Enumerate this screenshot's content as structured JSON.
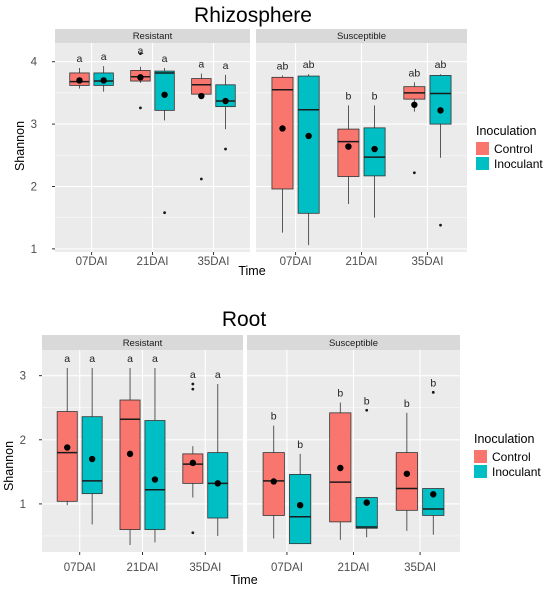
{
  "colors": {
    "control": "#F8766D",
    "inoculant": "#00BFC4",
    "panel_bg": "#EBEBEB",
    "strip_bg": "#D9D9D9",
    "grid": "#ffffff"
  },
  "legend": {
    "title": "Inoculation",
    "items": [
      "Control",
      "Inoculant"
    ]
  },
  "chart_data": [
    {
      "type": "box",
      "title": "Rhizosphere",
      "xlabel": "Time",
      "ylabel": "Shannon",
      "ylim": [
        0.95,
        4.3
      ],
      "yticks": [
        1,
        2,
        3,
        4
      ],
      "categories": [
        "07DAI",
        "21DAI",
        "35DAI"
      ],
      "facets": [
        {
          "label": "Resistant",
          "boxes": [
            {
              "time": "07DAI",
              "group": "Control",
              "min": 3.57,
              "q1": 3.62,
              "median": 3.68,
              "q3": 3.82,
              "max": 3.9,
              "mean": 3.7,
              "outliers": [],
              "letter": "a"
            },
            {
              "time": "07DAI",
              "group": "Inoculant",
              "min": 3.52,
              "q1": 3.62,
              "median": 3.69,
              "q3": 3.82,
              "max": 3.93,
              "mean": 3.7,
              "outliers": [],
              "letter": "a"
            },
            {
              "time": "21DAI",
              "group": "Control",
              "min": 3.66,
              "q1": 3.69,
              "median": 3.76,
              "q3": 3.86,
              "max": 3.92,
              "mean": 3.75,
              "outliers": [
                4.13,
                3.26
              ],
              "letter": "a"
            },
            {
              "time": "21DAI",
              "group": "Inoculant",
              "min": 3.06,
              "q1": 3.22,
              "median": 3.82,
              "q3": 3.85,
              "max": 3.9,
              "mean": 3.47,
              "outliers": [
                1.58
              ],
              "letter": "a"
            },
            {
              "time": "35DAI",
              "group": "Control",
              "min": 3.42,
              "q1": 3.48,
              "median": 3.63,
              "q3": 3.73,
              "max": 3.81,
              "mean": 3.45,
              "outliers": [
                2.12
              ],
              "letter": "a"
            },
            {
              "time": "35DAI",
              "group": "Inoculant",
              "min": 2.92,
              "q1": 3.28,
              "median": 3.37,
              "q3": 3.63,
              "max": 3.79,
              "mean": 3.37,
              "outliers": [
                2.6
              ],
              "letter": "a"
            }
          ]
        },
        {
          "label": "Susceptible",
          "boxes": [
            {
              "time": "07DAI",
              "group": "Control",
              "min": 1.26,
              "q1": 1.96,
              "median": 3.55,
              "q3": 3.75,
              "max": 3.78,
              "mean": 2.93,
              "outliers": [],
              "letter": "ab"
            },
            {
              "time": "07DAI",
              "group": "Inoculant",
              "min": 1.06,
              "q1": 1.57,
              "median": 3.23,
              "q3": 3.77,
              "max": 3.8,
              "mean": 2.81,
              "outliers": [],
              "letter": "ab"
            },
            {
              "time": "21DAI",
              "group": "Control",
              "min": 1.72,
              "q1": 2.16,
              "median": 2.72,
              "q3": 2.92,
              "max": 3.3,
              "mean": 2.64,
              "outliers": [],
              "letter": "b"
            },
            {
              "time": "21DAI",
              "group": "Inoculant",
              "min": 1.5,
              "q1": 2.17,
              "median": 2.47,
              "q3": 2.94,
              "max": 3.3,
              "mean": 2.6,
              "outliers": [],
              "letter": "b"
            },
            {
              "time": "35DAI",
              "group": "Control",
              "min": 3.2,
              "q1": 3.4,
              "median": 3.5,
              "q3": 3.6,
              "max": 3.67,
              "mean": 3.31,
              "outliers": [
                2.22
              ],
              "letter": "ab"
            },
            {
              "time": "35DAI",
              "group": "Inoculant",
              "min": 2.46,
              "q1": 3.0,
              "median": 3.49,
              "q3": 3.78,
              "max": 3.8,
              "mean": 3.22,
              "outliers": [
                1.38
              ],
              "letter": "ab"
            }
          ]
        }
      ]
    },
    {
      "type": "box",
      "title": "Root",
      "xlabel": "Time",
      "ylabel": "Shannon",
      "ylim": [
        0.25,
        3.4
      ],
      "yticks": [
        1,
        2,
        3
      ],
      "categories": [
        "07DAI",
        "21DAI",
        "35DAI"
      ],
      "facets": [
        {
          "label": "Resistant",
          "boxes": [
            {
              "time": "07DAI",
              "group": "Control",
              "min": 0.98,
              "q1": 1.04,
              "median": 1.8,
              "q3": 2.44,
              "max": 3.12,
              "mean": 1.88,
              "outliers": [],
              "letter": "a"
            },
            {
              "time": "07DAI",
              "group": "Inoculant",
              "min": 0.68,
              "q1": 1.16,
              "median": 1.36,
              "q3": 2.36,
              "max": 3.12,
              "mean": 1.7,
              "outliers": [],
              "letter": "a"
            },
            {
              "time": "21DAI",
              "group": "Control",
              "min": 0.36,
              "q1": 0.6,
              "median": 2.32,
              "q3": 2.62,
              "max": 3.12,
              "mean": 1.78,
              "outliers": [],
              "letter": "a"
            },
            {
              "time": "21DAI",
              "group": "Inoculant",
              "min": 0.4,
              "q1": 0.6,
              "median": 1.22,
              "q3": 2.3,
              "max": 3.12,
              "mean": 1.38,
              "outliers": [],
              "letter": "a"
            },
            {
              "time": "35DAI",
              "group": "Control",
              "min": 1.1,
              "q1": 1.32,
              "median": 1.62,
              "q3": 1.78,
              "max": 1.9,
              "mean": 1.64,
              "outliers": [
                2.87,
                2.79,
                0.55
              ],
              "letter": "a"
            },
            {
              "time": "35DAI",
              "group": "Inoculant",
              "min": 0.5,
              "q1": 0.78,
              "median": 1.32,
              "q3": 1.8,
              "max": 2.87,
              "mean": 1.32,
              "outliers": [],
              "letter": "a"
            }
          ]
        },
        {
          "label": "Susceptible",
          "boxes": [
            {
              "time": "07DAI",
              "group": "Control",
              "min": 0.46,
              "q1": 0.82,
              "median": 1.36,
              "q3": 1.8,
              "max": 2.22,
              "mean": 1.35,
              "outliers": [],
              "letter": "b"
            },
            {
              "time": "07DAI",
              "group": "Inoculant",
              "min": 0.38,
              "q1": 0.38,
              "median": 0.8,
              "q3": 1.46,
              "max": 1.78,
              "mean": 0.98,
              "outliers": [],
              "letter": "b"
            },
            {
              "time": "21DAI",
              "group": "Control",
              "min": 0.44,
              "q1": 0.72,
              "median": 1.34,
              "q3": 2.42,
              "max": 2.58,
              "mean": 1.56,
              "outliers": [],
              "letter": "b"
            },
            {
              "time": "21DAI",
              "group": "Inoculant",
              "min": 0.48,
              "q1": 0.62,
              "median": 0.64,
              "q3": 1.1,
              "max": 1.1,
              "mean": 1.02,
              "outliers": [
                2.46
              ],
              "letter": "b"
            },
            {
              "time": "35DAI",
              "group": "Control",
              "min": 0.58,
              "q1": 0.9,
              "median": 1.24,
              "q3": 1.8,
              "max": 2.42,
              "mean": 1.47,
              "outliers": [],
              "letter": "b"
            },
            {
              "time": "35DAI",
              "group": "Inoculant",
              "min": 0.52,
              "q1": 0.82,
              "median": 0.92,
              "q3": 1.24,
              "max": 1.24,
              "mean": 1.15,
              "outliers": [
                2.74
              ],
              "letter": "b"
            }
          ]
        }
      ]
    }
  ]
}
